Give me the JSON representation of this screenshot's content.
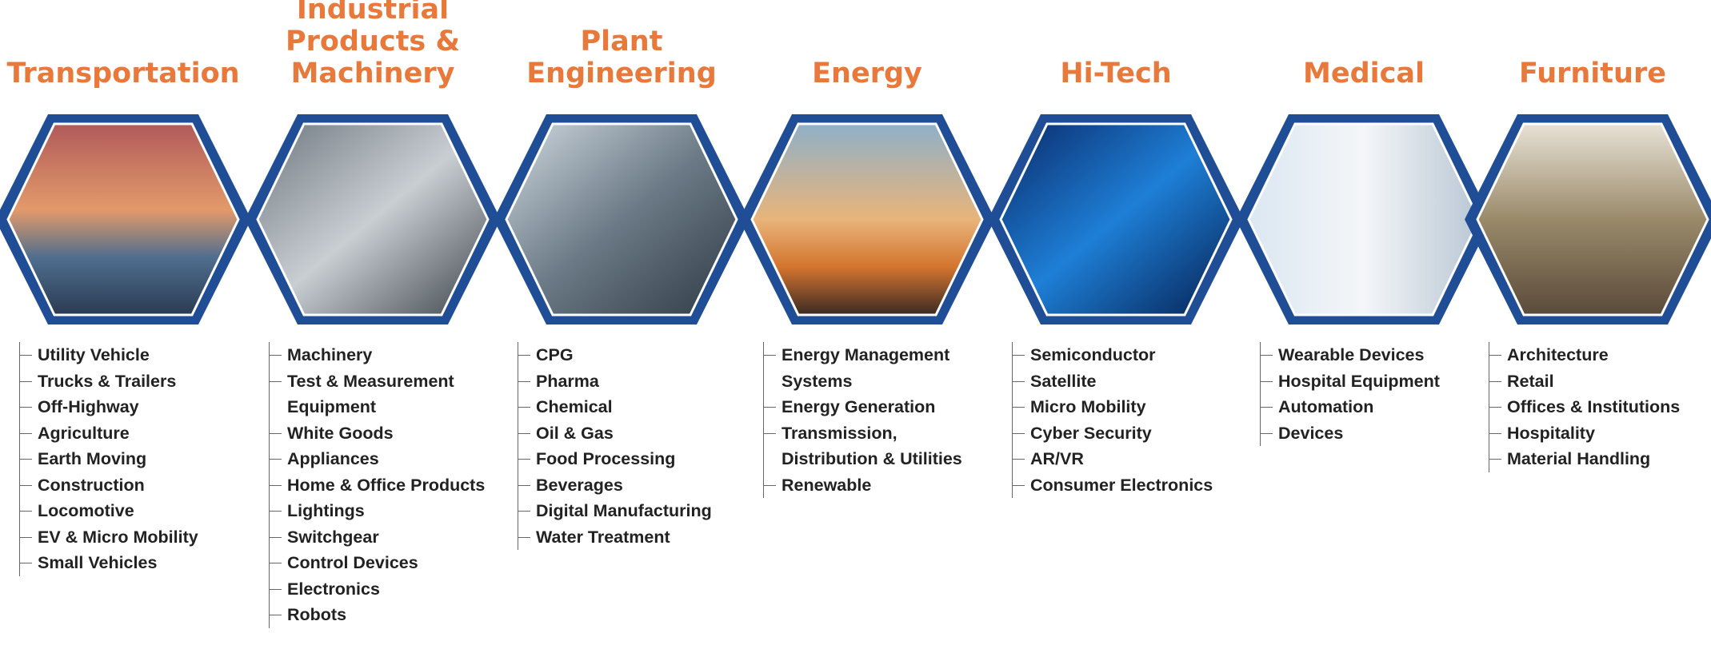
{
  "industries": [
    {
      "title": "Transportation",
      "items": [
        "Utility Vehicle",
        "Trucks & Trailers",
        "Off-Highway",
        "Agriculture",
        "Earth Moving",
        "Construction",
        "Locomotive",
        "EV & Micro Mobility",
        "Small Vehicles"
      ]
    },
    {
      "title": "Industrial Products & Machinery",
      "items": [
        "Machinery",
        "Test & Measurement Equipment",
        "White Goods",
        "Appliances",
        "Home & Office Products",
        "Lightings",
        "Switchgear",
        "Control Devices",
        "Electronics",
        "Robots"
      ]
    },
    {
      "title": "Plant Engineering",
      "items": [
        "CPG",
        "Pharma",
        "Chemical",
        "Oil & Gas",
        "Food Processing",
        "Beverages",
        "Digital Manufacturing",
        "Water Treatment"
      ]
    },
    {
      "title": "Energy",
      "items": [
        "Energy Management Systems",
        "Energy Generation",
        "Transmission, Distribution & Utilities",
        "Renewable"
      ]
    },
    {
      "title": "Hi-Tech",
      "items": [
        "Semiconductor",
        "Satellite",
        "Micro Mobility",
        "Cyber Security",
        "AR/VR",
        "Consumer Electronics"
      ]
    },
    {
      "title": "Medical",
      "items": [
        "Wearable Devices",
        "Hospital Equipment",
        "Automation",
        "Devices"
      ]
    },
    {
      "title": "Furniture",
      "items": [
        "Architecture",
        "Retail",
        "Offices & Institutions",
        "Hospitality",
        "Material Handling"
      ]
    }
  ]
}
